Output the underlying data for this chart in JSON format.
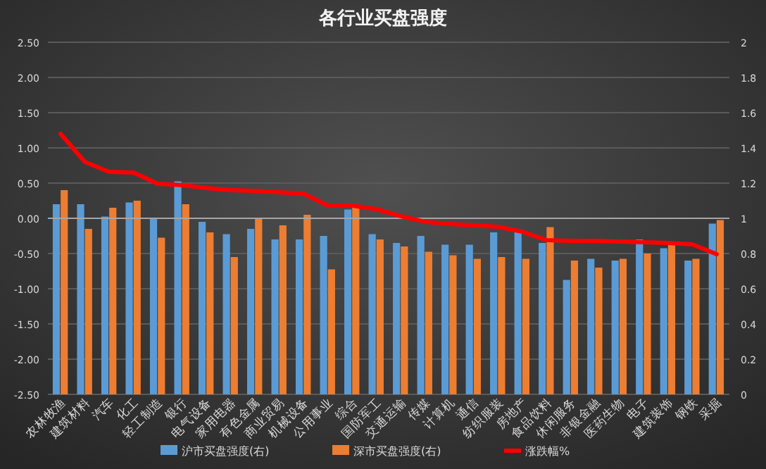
{
  "chart_data": {
    "type": "bar",
    "title": "各行业买盘强度",
    "categories": [
      "农林牧渔",
      "建筑材料",
      "汽车",
      "化工",
      "轻工制造",
      "银行",
      "电气设备",
      "家用电器",
      "有色金属",
      "商业贸易",
      "机械设备",
      "公用事业",
      "综合",
      "国防军工",
      "交通运输",
      "传媒",
      "计算机",
      "通信",
      "纺织服装",
      "房地产",
      "食品饮料",
      "休闲服务",
      "非银金融",
      "医药生物",
      "电子",
      "建筑装饰",
      "钢铁",
      "采掘"
    ],
    "series": [
      {
        "name": "沪市买盘强度(右)",
        "axis": "y2",
        "color": "#5b9bd5",
        "values": [
          1.08,
          1.08,
          1.01,
          1.09,
          1.0,
          1.21,
          0.98,
          0.91,
          0.94,
          0.88,
          0.88,
          0.9,
          1.05,
          0.91,
          0.86,
          0.9,
          0.85,
          0.85,
          0.92,
          0.92,
          0.86,
          0.65,
          0.77,
          0.76,
          0.88,
          0.83,
          0.76,
          0.97
        ]
      },
      {
        "name": "深市买盘强度(右)",
        "axis": "y2",
        "color": "#ed7d31",
        "values": [
          1.16,
          0.94,
          1.06,
          1.1,
          0.89,
          1.08,
          0.92,
          0.78,
          1.0,
          0.96,
          1.02,
          0.71,
          1.06,
          0.88,
          0.84,
          0.81,
          0.79,
          0.77,
          0.78,
          0.77,
          0.95,
          0.76,
          0.72,
          0.77,
          0.8,
          0.85,
          0.77,
          0.99
        ]
      },
      {
        "name": "涨跌幅%",
        "type": "line",
        "color": "#ff0000",
        "values": [
          1.2,
          0.8,
          0.66,
          0.65,
          0.49,
          0.47,
          0.43,
          0.4,
          0.39,
          0.37,
          0.35,
          0.18,
          0.18,
          0.13,
          0.03,
          -0.05,
          -0.08,
          -0.1,
          -0.12,
          -0.19,
          -0.31,
          -0.32,
          -0.32,
          -0.33,
          -0.34,
          -0.35,
          -0.37,
          -0.51
        ]
      }
    ],
    "ylim": [
      -2.5,
      2.5
    ],
    "yticks": [
      {
        "value": -2.5,
        "label": "-2.50"
      },
      {
        "value": -2,
        "label": "-2.00"
      },
      {
        "value": -1.5,
        "label": "-1.50"
      },
      {
        "value": -1,
        "label": "-1.00"
      },
      {
        "value": -0.5,
        "label": "-0.50"
      },
      {
        "value": 0,
        "label": "0.00"
      },
      {
        "value": 0.5,
        "label": "0.50"
      },
      {
        "value": 1,
        "label": "1.00"
      },
      {
        "value": 1.5,
        "label": "1.50"
      },
      {
        "value": 2,
        "label": "2.00"
      },
      {
        "value": 2.5,
        "label": "2.50"
      }
    ],
    "y2lim": [
      0,
      2
    ],
    "y2ticks": [
      0,
      0.2,
      0.4,
      0.6,
      0.8,
      1,
      1.2,
      1.4,
      1.6,
      1.8,
      2
    ],
    "grid": "y",
    "legend": "bottom",
    "marker": "none",
    "line_style": "solid"
  }
}
